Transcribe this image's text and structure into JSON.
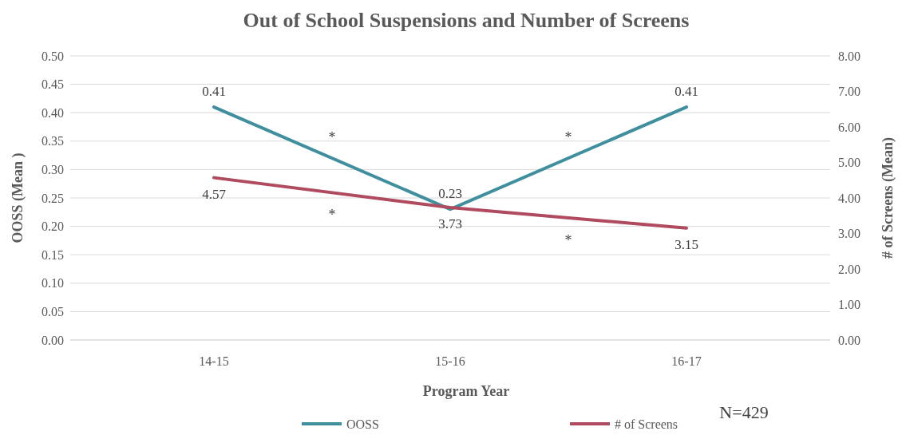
{
  "chart_data": {
    "type": "line",
    "title": "Out of School Suspensions and Number of Screens",
    "xlabel": "Program Year",
    "ylabel": "OOSS (Mean )",
    "y2label": "# of Screens (Mean)",
    "categories": [
      "14-15",
      "15-16",
      "16-17"
    ],
    "series": [
      {
        "name": "OOSS",
        "color": "#3f8f9e",
        "values": [
          0.41,
          0.23,
          0.41
        ]
      },
      {
        "name": "# of Screens",
        "color": "#b04a5e",
        "values": [
          4.57,
          3.73,
          3.15
        ],
        "axis": "y2"
      }
    ],
    "ylim": [
      0,
      0.5
    ],
    "yticks": [
      {
        "value": 0,
        "label": "0.00"
      },
      {
        "value": 0.05,
        "label": "0.05"
      },
      {
        "value": 0.1,
        "label": "0.10"
      },
      {
        "value": 0.15,
        "label": "0.15"
      },
      {
        "value": 0.2,
        "label": "0.20"
      },
      {
        "value": 0.25,
        "label": "0.25"
      },
      {
        "value": 0.3,
        "label": "0.30"
      },
      {
        "value": 0.35,
        "label": "0.35"
      },
      {
        "value": 0.4,
        "label": "0.40"
      },
      {
        "value": 0.45,
        "label": "0.45"
      },
      {
        "value": 0.5,
        "label": "0.50"
      }
    ],
    "y2lim": [
      0,
      8
    ],
    "y2ticks": [
      {
        "value": 0,
        "label": "0.00"
      },
      {
        "value": 1,
        "label": "1.00"
      },
      {
        "value": 2,
        "label": "2.00"
      },
      {
        "value": 3,
        "label": "3.00"
      },
      {
        "value": 4,
        "label": "4.00"
      },
      {
        "value": 5,
        "label": "5.00"
      },
      {
        "value": 6,
        "label": "6.00"
      },
      {
        "value": 7,
        "label": "7.00"
      },
      {
        "value": 8,
        "label": "8.00"
      }
    ],
    "grid": "y",
    "legend": "bottom",
    "data_labels": true,
    "marker": "none",
    "line_style": "solid",
    "annotations": [
      "*",
      "*",
      "*",
      "*",
      "N=429"
    ]
  }
}
